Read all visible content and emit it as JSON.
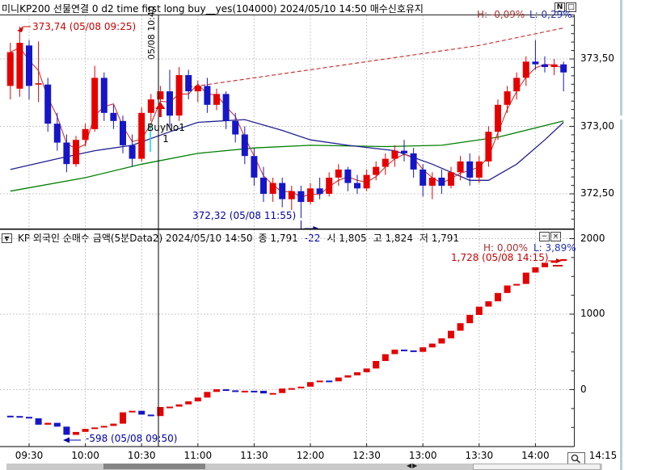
{
  "colors": {
    "candle_up": "#e60000",
    "candle_down": "#1616c8",
    "ma_fast": "#cc3333",
    "ma_mid": "#202090",
    "ma_slow": "#008000",
    "trend_dashed": "#cc3333",
    "grid": "#c8c8c8",
    "annotation_up": "#cc0000",
    "annotation_down": "#0000aa",
    "high_label": "#a83333",
    "low_label": "#2233bb",
    "signal_line": "#000000",
    "signal_marker": "#00dcdc",
    "buy_arrow": "#e60000"
  },
  "panel1": {
    "title": "미니KP200 선물연결 0 d2 time first long buy__yes(104000)  2024/05/10 14:50 매수신호유지",
    "buttons": {
      "n": "N",
      "maximize": "□"
    },
    "high_label": "H: -0,09%",
    "low_label": "L: 0,29%",
    "high_annotation": {
      "text": "373,74 (05/08 09:25)",
      "time": "09:25",
      "value": 373.74
    },
    "low_annotation": {
      "text": "372,32 (05/08 11:55)",
      "time": "11:55",
      "value": 372.32
    },
    "buy_marker": {
      "label": "BuyNo1",
      "count": "1",
      "time": "10:40"
    },
    "time_marker_label": "05/08 10:40"
  },
  "panel2": {
    "icon": "▼",
    "title": "KP 외국인 순매수 금액(5분Data2) 2024/05/10 14:50",
    "quote": [
      {
        "label": "종",
        "value": "1,791",
        "color": "#000000"
      },
      {
        "label": "",
        "value": "-22",
        "color": "#0000bb"
      },
      {
        "label": "시",
        "value": "1,805",
        "color": "#000000"
      },
      {
        "label": "고",
        "value": "1,824",
        "color": "#000000"
      },
      {
        "label": "저",
        "value": "1,791",
        "color": "#000000"
      }
    ],
    "buttons": {
      "minimize": "−",
      "close": "×"
    },
    "high_label": "H: 0,00%",
    "low_label": "L: 3,89%",
    "high_annotation": {
      "text": "1,728 (05/08 14:15)",
      "time": "14:15",
      "value": 1728
    },
    "low_annotation": {
      "text": "-598 (05/08 09:50)",
      "time": "09:50",
      "value": -598
    }
  },
  "x_axis": {
    "labels": [
      "09:30",
      "10:00",
      "10:30",
      "11:00",
      "11:30",
      "12:00",
      "12:30",
      "13:00",
      "13:30",
      "14:00"
    ],
    "end_label": "14:15"
  },
  "chart_data": {
    "x_times": [
      "09:20",
      "09:25",
      "09:30",
      "09:35",
      "09:40",
      "09:45",
      "09:50",
      "09:55",
      "10:00",
      "10:05",
      "10:10",
      "10:15",
      "10:20",
      "10:25",
      "10:30",
      "10:35",
      "10:40",
      "10:45",
      "10:50",
      "10:55",
      "11:00",
      "11:05",
      "11:10",
      "11:15",
      "11:20",
      "11:25",
      "11:30",
      "11:35",
      "11:40",
      "11:45",
      "11:50",
      "11:55",
      "12:00",
      "12:05",
      "12:10",
      "12:15",
      "12:20",
      "12:25",
      "12:30",
      "12:35",
      "12:40",
      "12:45",
      "12:50",
      "12:55",
      "13:00",
      "13:05",
      "13:10",
      "13:15",
      "13:20",
      "13:25",
      "13:30",
      "13:35",
      "13:40",
      "13:45",
      "13:50",
      "13:55",
      "14:00",
      "14:05",
      "14:10",
      "14:15"
    ],
    "panels": [
      {
        "type": "candlestick",
        "name": "price",
        "period": "5min",
        "ohlc": [
          [
            373.3,
            373.62,
            373.2,
            373.55
          ],
          [
            373.28,
            373.74,
            373.22,
            373.62
          ],
          [
            373.6,
            373.64,
            373.2,
            373.3
          ],
          [
            373.31,
            373.63,
            373.18,
            373.32
          ],
          [
            373.31,
            373.36,
            372.96,
            373.02
          ],
          [
            373.02,
            373.1,
            372.82,
            372.88
          ],
          [
            372.88,
            372.94,
            372.66,
            372.72
          ],
          [
            372.72,
            372.93,
            372.7,
            372.9
          ],
          [
            372.9,
            373.02,
            372.85,
            372.98
          ],
          [
            372.98,
            373.45,
            372.96,
            373.36
          ],
          [
            373.36,
            373.4,
            373.04,
            373.1
          ],
          [
            373.1,
            373.16,
            372.98,
            373.04
          ],
          [
            373.04,
            373.08,
            372.8,
            372.86
          ],
          [
            372.86,
            372.94,
            372.7,
            372.76
          ],
          [
            372.76,
            373.14,
            372.74,
            373.1
          ],
          [
            373.1,
            373.24,
            373.04,
            373.2
          ],
          [
            373.2,
            373.3,
            373.1,
            373.26
          ],
          [
            373.26,
            373.42,
            373.0,
            373.08
          ],
          [
            373.08,
            373.44,
            373.04,
            373.38
          ],
          [
            373.38,
            373.42,
            373.2,
            373.26
          ],
          [
            373.26,
            373.34,
            373.18,
            373.3
          ],
          [
            373.3,
            373.36,
            373.1,
            373.16
          ],
          [
            373.16,
            373.28,
            373.12,
            373.24
          ],
          [
            373.24,
            373.26,
            372.98,
            373.04
          ],
          [
            373.04,
            373.1,
            372.88,
            372.94
          ],
          [
            372.94,
            373.0,
            372.72,
            372.78
          ],
          [
            372.78,
            372.84,
            372.56,
            372.62
          ],
          [
            372.62,
            372.7,
            372.44,
            372.5
          ],
          [
            372.5,
            372.62,
            372.44,
            372.58
          ],
          [
            372.58,
            372.62,
            372.4,
            372.46
          ],
          [
            372.46,
            372.56,
            372.38,
            372.52
          ],
          [
            372.52,
            372.56,
            372.32,
            372.44
          ],
          [
            372.44,
            372.58,
            372.42,
            372.54
          ],
          [
            372.54,
            372.62,
            372.46,
            372.5
          ],
          [
            372.5,
            372.66,
            372.48,
            372.62
          ],
          [
            372.62,
            372.72,
            372.56,
            372.68
          ],
          [
            372.68,
            372.7,
            372.52,
            372.58
          ],
          [
            372.58,
            372.64,
            372.5,
            372.54
          ],
          [
            372.54,
            372.68,
            372.52,
            372.64
          ],
          [
            372.64,
            372.74,
            372.6,
            372.7
          ],
          [
            372.7,
            372.8,
            372.64,
            372.76
          ],
          [
            372.76,
            372.86,
            372.7,
            372.82
          ],
          [
            372.82,
            372.9,
            372.74,
            372.8
          ],
          [
            372.8,
            372.84,
            372.62,
            372.68
          ],
          [
            372.68,
            372.72,
            372.48,
            372.56
          ],
          [
            372.56,
            372.66,
            372.46,
            372.62
          ],
          [
            372.62,
            372.68,
            372.5,
            372.56
          ],
          [
            372.56,
            372.7,
            372.54,
            372.66
          ],
          [
            372.66,
            372.78,
            372.6,
            372.74
          ],
          [
            372.74,
            372.8,
            372.56,
            372.62
          ],
          [
            372.62,
            372.78,
            372.58,
            372.74
          ],
          [
            372.74,
            373.0,
            372.7,
            372.96
          ],
          [
            372.96,
            373.2,
            372.9,
            373.16
          ],
          [
            373.16,
            373.3,
            373.1,
            373.26
          ],
          [
            373.26,
            373.4,
            373.2,
            373.36
          ],
          [
            373.36,
            373.52,
            373.3,
            373.48
          ],
          [
            373.48,
            373.64,
            373.42,
            373.46
          ],
          [
            373.46,
            373.52,
            373.4,
            373.44
          ],
          [
            373.44,
            373.5,
            373.38,
            373.46
          ],
          [
            373.46,
            373.48,
            373.26,
            373.4
          ]
        ],
        "y_ticks": [
          {
            "label": "373,50",
            "value": 373.5
          },
          {
            "label": "373,00",
            "value": 373.0
          },
          {
            "label": "372,50",
            "value": 372.5
          }
        ],
        "ylim": [
          372.24,
          373.83
        ],
        "ma_fast_period": 3,
        "ma_mid_points": [
          [
            "09:20",
            372.68
          ],
          [
            "09:45",
            372.76
          ],
          [
            "10:05",
            372.82
          ],
          [
            "10:25",
            372.86
          ],
          [
            "10:45",
            372.96
          ],
          [
            "11:00",
            373.03
          ],
          [
            "11:25",
            373.05
          ],
          [
            "11:45",
            372.97
          ],
          [
            "12:00",
            372.9
          ],
          [
            "12:20",
            372.86
          ],
          [
            "12:45",
            372.82
          ],
          [
            "13:05",
            372.72
          ],
          [
            "13:25",
            372.6
          ],
          [
            "13:35",
            372.6
          ],
          [
            "13:50",
            372.72
          ],
          [
            "14:05",
            372.9
          ],
          [
            "14:15",
            373.03
          ]
        ],
        "ma_slow_points": [
          [
            "09:20",
            372.52
          ],
          [
            "10:00",
            372.62
          ],
          [
            "10:30",
            372.72
          ],
          [
            "11:00",
            372.8
          ],
          [
            "11:30",
            372.84
          ],
          [
            "12:00",
            372.86
          ],
          [
            "12:40",
            372.85
          ],
          [
            "13:10",
            372.86
          ],
          [
            "13:40",
            372.92
          ],
          [
            "14:15",
            373.04
          ]
        ],
        "trend_dashed_points": [
          [
            "10:55",
            373.29
          ],
          [
            "12:20",
            373.46
          ],
          [
            "13:30",
            373.6
          ],
          [
            "14:15",
            373.73
          ]
        ]
      },
      {
        "type": "bar-candle",
        "name": "foreign_net_buy",
        "period": "5min",
        "first_open": -345,
        "values": [
          -350,
          -360,
          -380,
          -465,
          -440,
          -490,
          -598,
          -560,
          -520,
          -500,
          -480,
          -450,
          -300,
          -280,
          -330,
          -350,
          -230,
          -225,
          -195,
          -155,
          -105,
          -30,
          5,
          -10,
          -20,
          -15,
          -15,
          -50,
          -45,
          15,
          20,
          40,
          100,
          120,
          110,
          160,
          190,
          230,
          280,
          380,
          470,
          530,
          520,
          500,
          560,
          610,
          680,
          780,
          880,
          990,
          1100,
          1170,
          1280,
          1380,
          1400,
          1550,
          1620,
          1680,
          1705,
          1728
        ],
        "y_ticks": [
          {
            "label": "2000",
            "value": 2000
          },
          {
            "label": "1000",
            "value": 1000
          },
          {
            "label": "0",
            "value": 0
          }
        ],
        "ylim": [
          -750,
          2110
        ]
      }
    ]
  }
}
